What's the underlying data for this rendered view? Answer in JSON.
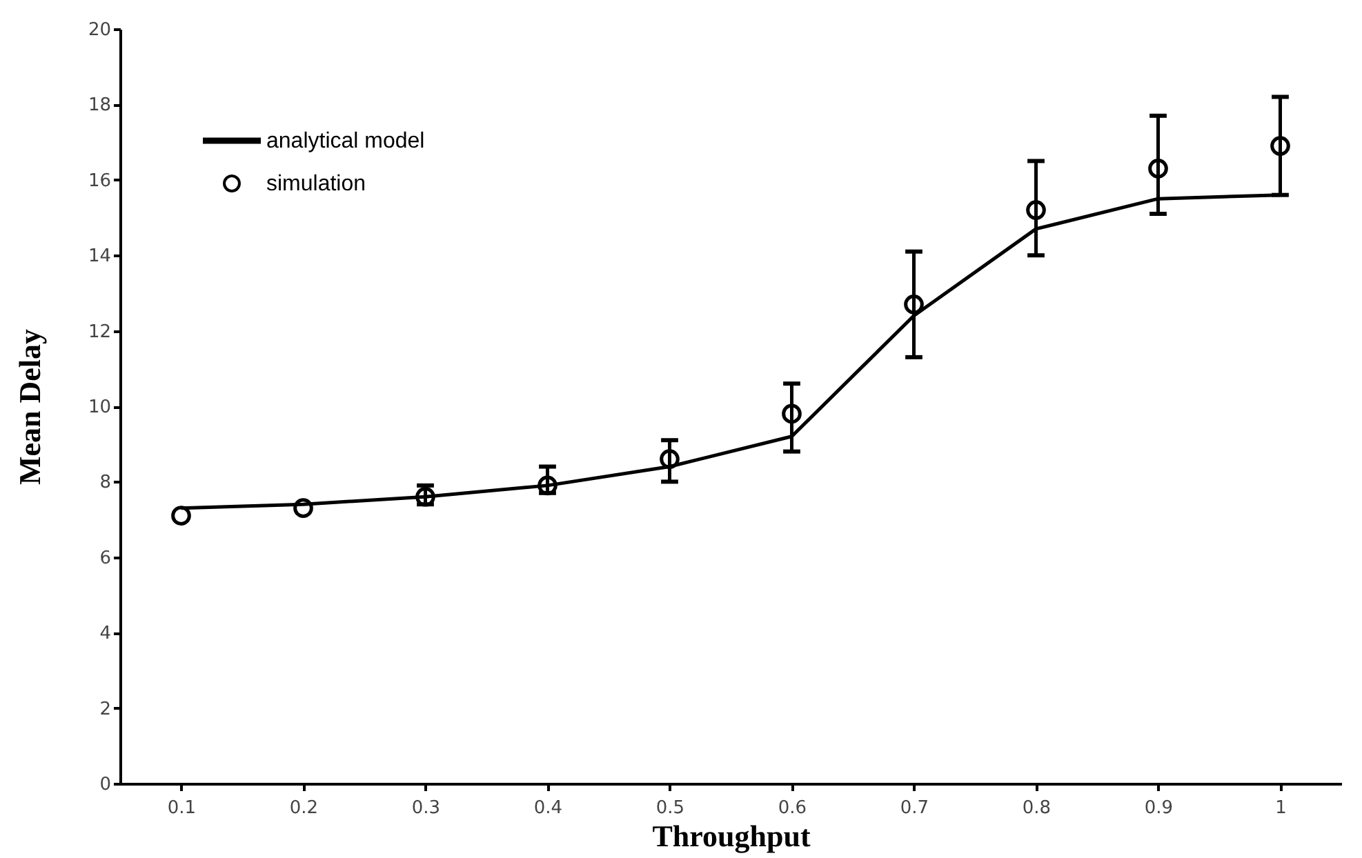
{
  "chart_data": {
    "type": "line",
    "xlabel": "Throughput",
    "ylabel": "Mean Delay",
    "x": [
      0.1,
      0.2,
      0.3,
      0.4,
      0.5,
      0.6,
      0.7,
      0.8,
      0.9,
      1.0
    ],
    "series": [
      {
        "name": "analytical model",
        "color": "#000000",
        "marker": "none",
        "line_style": "solid",
        "values": [
          7.3,
          7.4,
          7.6,
          7.9,
          8.4,
          9.2,
          12.4,
          14.7,
          15.5,
          15.6
        ]
      },
      {
        "name": "simulation",
        "type": "scatter",
        "color": "#000000",
        "marker": "circle",
        "values": [
          7.1,
          7.3,
          7.6,
          7.9,
          8.6,
          9.8,
          12.7,
          15.2,
          16.3,
          16.9
        ],
        "errors": [
          null,
          null,
          [
            7.4,
            7.9
          ],
          [
            7.7,
            8.4
          ],
          [
            8.0,
            9.1
          ],
          [
            8.8,
            10.6
          ],
          [
            11.3,
            14.1
          ],
          [
            14.0,
            16.5
          ],
          [
            15.1,
            17.7
          ],
          [
            15.6,
            18.2
          ]
        ]
      }
    ],
    "xlim": [
      0.05,
      1.05
    ],
    "xticks": [
      0.1,
      0.2,
      0.3,
      0.4,
      0.5,
      0.6,
      0.7,
      0.8,
      0.9,
      {
        "value": 1.0,
        "label": "1"
      }
    ],
    "ylim": [
      0,
      20
    ],
    "yticks": [
      0,
      2,
      4,
      6,
      8,
      10,
      12,
      14,
      16,
      18,
      20
    ],
    "legend": "top left"
  }
}
